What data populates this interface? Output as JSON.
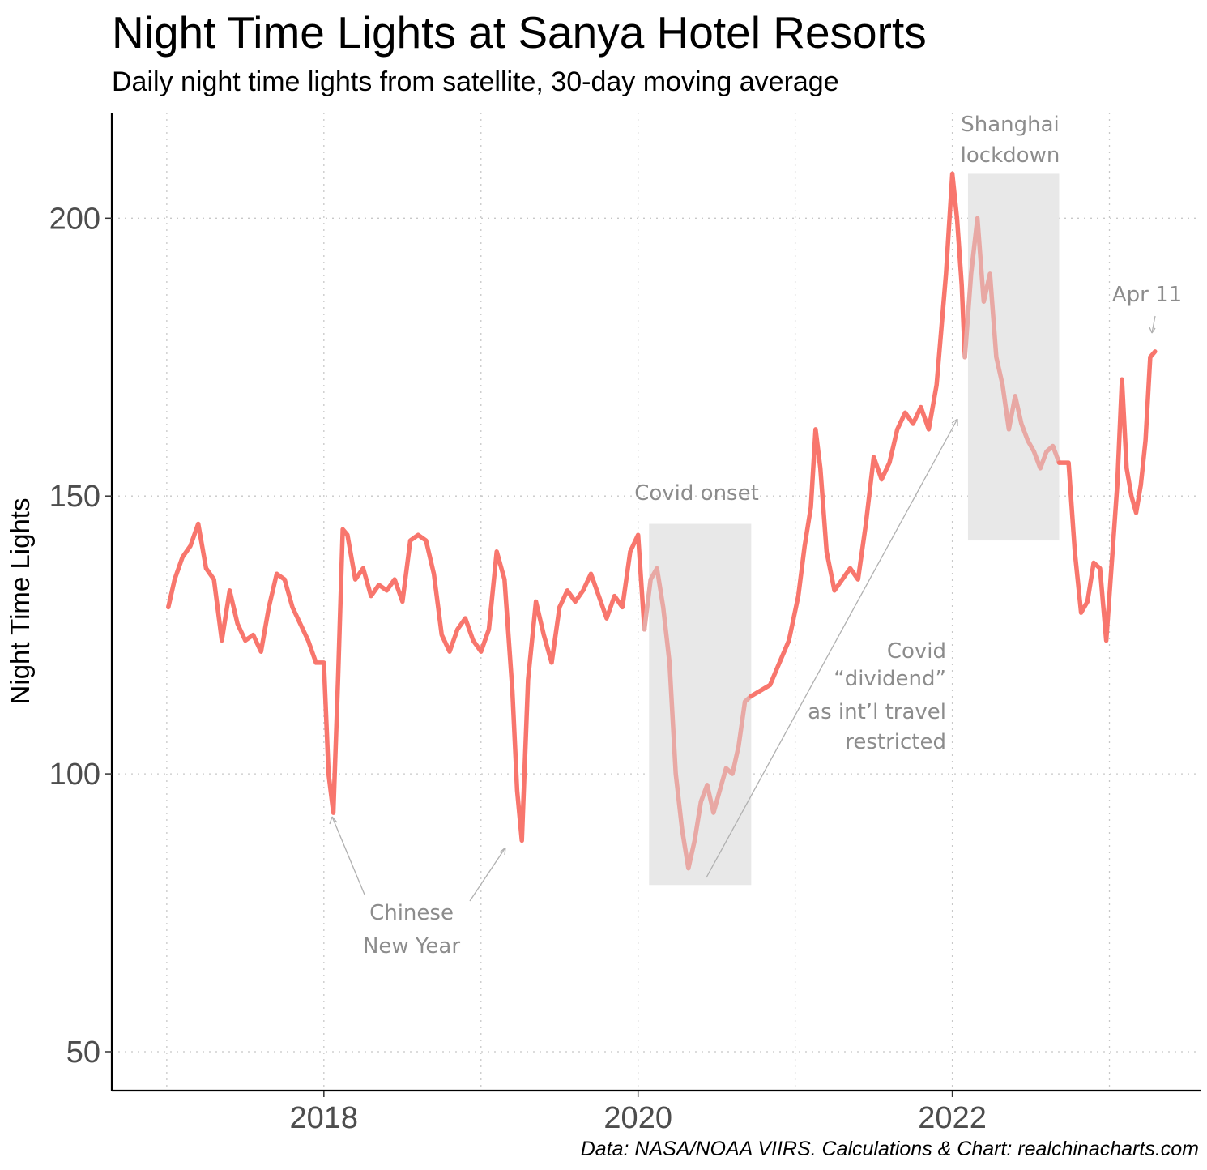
{
  "chart": {
    "title": "Night Time Lights at Sanya Hotel Resorts",
    "subtitle": "Daily night time lights from satellite, 30-day moving average",
    "caption": "Data: NASA/NOAA VIIRS. Calculations & Chart: realchinacharts.com"
  },
  "chart_data": {
    "type": "line",
    "title": "Night Time Lights at Sanya Hotel Resorts",
    "subtitle": "Daily night time lights from satellite, 30-day moving average",
    "xlabel": "",
    "ylabel": "Night Time Lights",
    "xlim": [
      2016.65,
      2023.58
    ],
    "ylim": [
      43,
      219
    ],
    "x_ticks": [
      2018,
      2020,
      2022
    ],
    "x_tick_labels": [
      "2018",
      "2020",
      "2022"
    ],
    "y_ticks": [
      50,
      100,
      150,
      200
    ],
    "y_tick_labels": [
      "50",
      "100",
      "150",
      "200"
    ],
    "grid": true,
    "line_color": "#f8766d",
    "shaded_line_color": "#e8a8a4",
    "shade_color": "#e8e8e8",
    "series": [
      {
        "x": [
          2017.01,
          2017.05,
          2017.1,
          2017.15,
          2017.2,
          2017.25,
          2017.3,
          2017.35,
          2017.4,
          2017.45,
          2017.5,
          2017.55,
          2017.6,
          2017.65,
          2017.7,
          2017.75,
          2017.8,
          2017.85,
          2017.9,
          2017.95,
          2018.0,
          2018.03,
          2018.06,
          2018.09,
          2018.12,
          2018.15,
          2018.2,
          2018.25,
          2018.3,
          2018.35,
          2018.4,
          2018.45,
          2018.5,
          2018.55,
          2018.6,
          2018.65,
          2018.7,
          2018.75,
          2018.8,
          2018.85,
          2018.9,
          2018.95,
          2019.0,
          2019.05,
          2019.1,
          2019.15,
          2019.2,
          2019.23,
          2019.26,
          2019.3,
          2019.35,
          2019.4,
          2019.45,
          2019.5,
          2019.55,
          2019.6,
          2019.65,
          2019.7,
          2019.75,
          2019.8,
          2019.85,
          2019.9,
          2019.95,
          2020.0,
          2020.04
        ],
        "values": [
          130,
          135,
          139,
          141,
          145,
          137,
          135,
          124,
          133,
          127,
          124,
          125,
          122,
          130,
          136,
          135,
          130,
          127,
          124,
          120,
          120,
          100,
          93,
          117,
          144,
          143,
          135,
          137,
          132,
          134,
          133,
          135,
          131,
          142,
          143,
          142,
          136,
          125,
          122,
          126,
          128,
          124,
          122,
          126,
          140,
          135,
          115,
          97,
          88,
          117,
          131,
          125,
          120,
          130,
          133,
          131,
          133,
          136,
          132,
          128,
          132,
          130,
          140,
          143,
          126
        ]
      },
      {
        "x": [
          2020.04,
          2020.08,
          2020.12,
          2020.16,
          2020.2,
          2020.24,
          2020.28,
          2020.32,
          2020.36,
          2020.4,
          2020.44,
          2020.48,
          2020.52,
          2020.56,
          2020.6,
          2020.64,
          2020.68,
          2020.72
        ],
        "values": [
          126,
          135,
          137,
          130,
          120,
          100,
          90,
          83,
          88,
          95,
          98,
          93,
          97,
          101,
          100,
          105,
          113,
          114
        ]
      },
      {
        "x": [
          2020.72,
          2020.78,
          2020.84,
          2020.9,
          2020.96,
          2021.02,
          2021.06,
          2021.1,
          2021.13,
          2021.16,
          2021.2,
          2021.25,
          2021.3,
          2021.35,
          2021.4,
          2021.45,
          2021.5,
          2021.55,
          2021.6,
          2021.65,
          2021.7,
          2021.75,
          2021.8,
          2021.85,
          2021.9,
          2021.93,
          2021.96,
          2022.0,
          2022.03,
          2022.06,
          2022.08
        ],
        "values": [
          114,
          115,
          116,
          120,
          124,
          132,
          141,
          148,
          162,
          155,
          140,
          133,
          135,
          137,
          135,
          145,
          157,
          153,
          156,
          162,
          165,
          163,
          166,
          162,
          170,
          180,
          190,
          208,
          200,
          188,
          175
        ]
      },
      {
        "x": [
          2022.08,
          2022.12,
          2022.16,
          2022.2,
          2022.24,
          2022.28,
          2022.32,
          2022.36,
          2022.4,
          2022.44,
          2022.48,
          2022.52,
          2022.56,
          2022.6,
          2022.64,
          2022.68
        ],
        "values": [
          175,
          190,
          200,
          185,
          190,
          175,
          170,
          162,
          168,
          163,
          160,
          158,
          155,
          158,
          159,
          156
        ]
      },
      {
        "x": [
          2022.68,
          2022.74,
          2022.78,
          2022.82,
          2022.86,
          2022.9,
          2022.94,
          2022.98,
          2023.02,
          2023.05,
          2023.08,
          2023.11,
          2023.14,
          2023.17,
          2023.2,
          2023.23,
          2023.26,
          2023.29
        ],
        "values": [
          156,
          156,
          140,
          129,
          131,
          138,
          137,
          124,
          140,
          152,
          171,
          155,
          150,
          147,
          152,
          160,
          175,
          176
        ]
      }
    ],
    "annotations": {
      "chinese_new_year": {
        "lines": [
          "Chinese",
          "New Year"
        ]
      },
      "covid_onset": {
        "label": "Covid onset",
        "x_range": [
          2020.07,
          2020.72
        ],
        "y_range": [
          80,
          145
        ]
      },
      "covid_dividend": {
        "lines": [
          "Covid",
          "“dividend”",
          "as int’l travel",
          "restricted"
        ]
      },
      "shanghai_lockdown": {
        "lines": [
          "Shanghai",
          "lockdown"
        ],
        "x_range": [
          2022.1,
          2022.68
        ],
        "y_range": [
          142,
          208
        ]
      },
      "apr11": {
        "label": "Apr 11"
      }
    }
  }
}
